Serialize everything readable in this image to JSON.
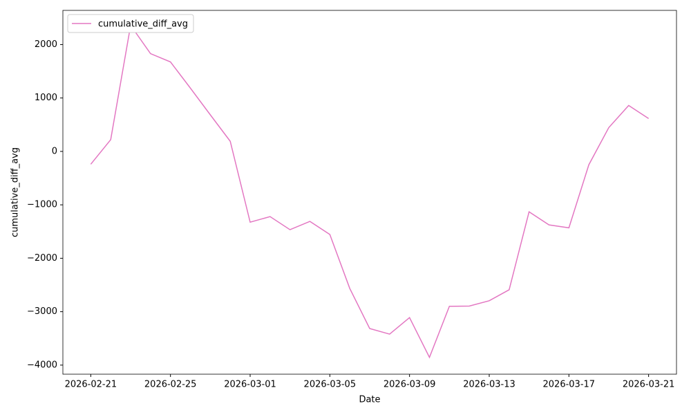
{
  "chart_data": {
    "type": "line",
    "x_label": "Date",
    "y_label": "cumulative_diff_avg",
    "x": [
      "2026-02-21",
      "2026-02-22",
      "2026-02-23",
      "2026-02-24",
      "2026-02-25",
      "2026-02-26",
      "2026-02-27",
      "2026-02-28",
      "2026-03-01",
      "2026-03-02",
      "2026-03-03",
      "2026-03-04",
      "2026-03-05",
      "2026-03-06",
      "2026-03-07",
      "2026-03-08",
      "2026-03-09",
      "2026-03-10",
      "2026-03-11",
      "2026-03-12",
      "2026-03-13",
      "2026-03-14",
      "2026-03-15",
      "2026-03-16",
      "2026-03-17",
      "2026-03-18",
      "2026-03-19",
      "2026-03-20",
      "2026-03-21"
    ],
    "series": [
      {
        "name": "cumulative_diff_avg",
        "color": "#e377c2",
        "values": [
          -240,
          220,
          2360,
          1830,
          1675,
          1185,
          685,
          190,
          -1325,
          -1220,
          -1465,
          -1310,
          -1555,
          -2565,
          -3315,
          -3420,
          -3110,
          -3855,
          -2900,
          -2895,
          -2795,
          -2590,
          -1130,
          -1375,
          -1430,
          -250,
          445,
          860,
          615
        ]
      }
    ],
    "ylim": [
      -4170,
      2640
    ],
    "yticks": [
      {
        "value": -4000,
        "label": "−4000"
      },
      {
        "value": -3000,
        "label": "−3000"
      },
      {
        "value": -2000,
        "label": "−2000"
      },
      {
        "value": -1000,
        "label": "−1000"
      },
      0,
      1000,
      2000
    ],
    "xticks": [
      "2026-02-21",
      "2026-02-25",
      "2026-03-01",
      "2026-03-05",
      "2026-03-09",
      "2026-03-13",
      "2026-03-17",
      "2026-03-21"
    ],
    "legend": "upper left"
  }
}
